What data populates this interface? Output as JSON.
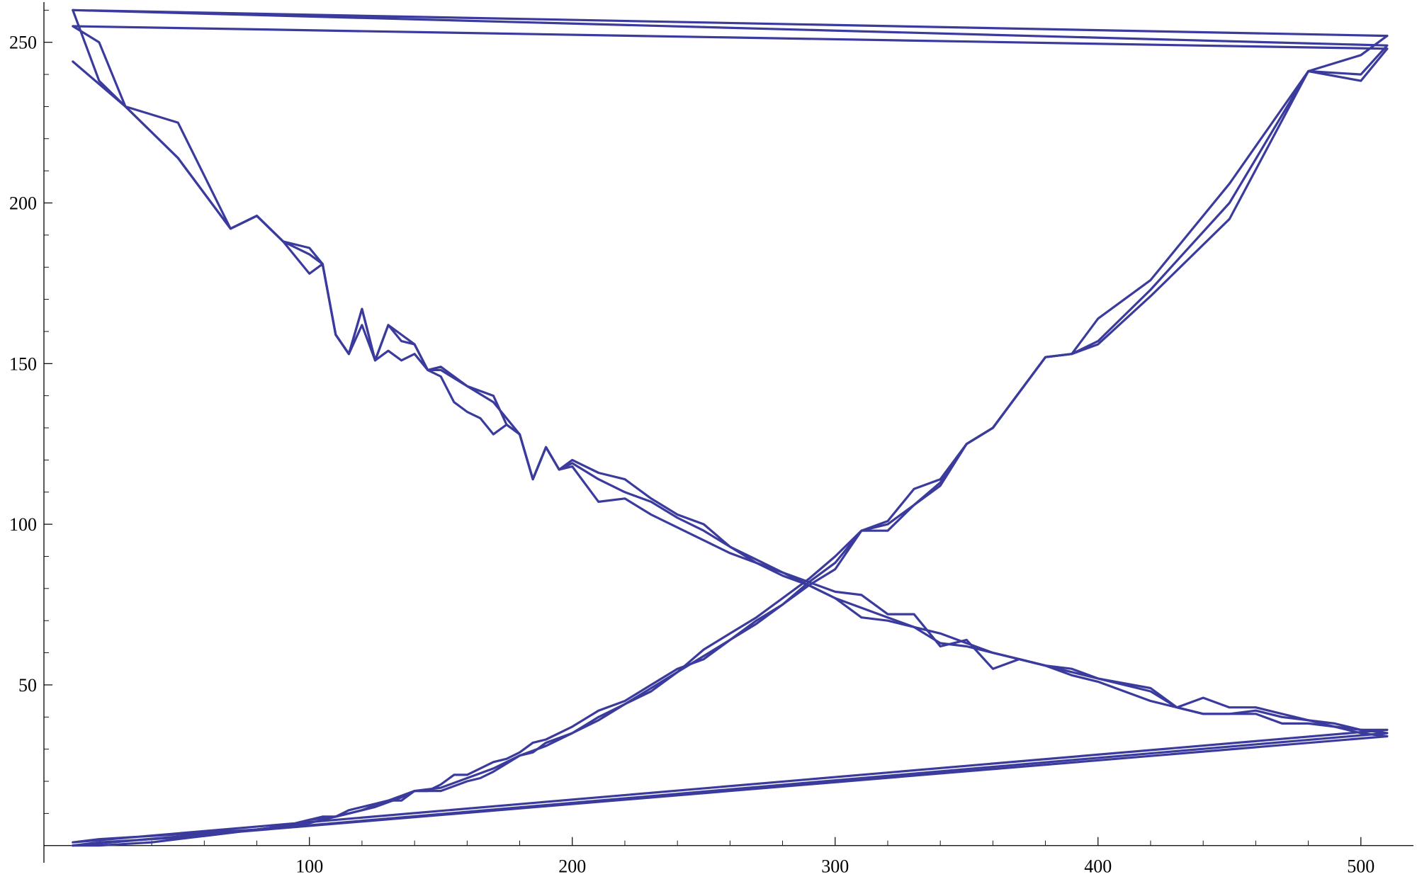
{
  "chart_data": {
    "type": "line",
    "title": "",
    "xlabel": "",
    "ylabel": "",
    "xlim": [
      -1,
      520
    ],
    "ylim": [
      -0.5,
      262.5
    ],
    "x_ticks": [
      100,
      200,
      300,
      400,
      500
    ],
    "y_ticks": [
      50,
      100,
      150,
      200,
      250
    ],
    "x_tick_labels": [
      "100",
      "200",
      "300",
      "400",
      "500"
    ],
    "y_tick_labels": [
      "50",
      "100",
      "150",
      "200",
      "250"
    ],
    "grid": false,
    "legend": "none",
    "line_color": "#3b3b9e",
    "series": [
      {
        "values": [
          [
            10,
            244
          ],
          [
            30,
            230
          ],
          [
            50,
            214
          ],
          [
            70,
            192
          ],
          [
            80,
            196
          ],
          [
            90,
            188
          ],
          [
            100,
            186
          ],
          [
            105,
            181
          ],
          [
            110,
            159
          ],
          [
            115,
            153
          ],
          [
            120,
            167
          ],
          [
            125,
            151
          ],
          [
            130,
            162
          ],
          [
            135,
            157
          ],
          [
            140,
            156
          ],
          [
            145,
            148
          ],
          [
            150,
            149
          ],
          [
            160,
            143
          ],
          [
            170,
            140
          ],
          [
            175,
            131
          ],
          [
            180,
            128
          ],
          [
            185,
            114
          ],
          [
            190,
            124
          ],
          [
            195,
            117
          ],
          [
            200,
            120
          ],
          [
            210,
            116
          ],
          [
            220,
            114
          ],
          [
            230,
            108
          ],
          [
            240,
            103
          ],
          [
            250,
            100
          ],
          [
            260,
            93
          ],
          [
            270,
            88
          ],
          [
            280,
            85
          ],
          [
            290,
            82
          ],
          [
            300,
            79
          ],
          [
            310,
            78
          ],
          [
            320,
            72
          ],
          [
            330,
            72
          ],
          [
            340,
            62
          ],
          [
            350,
            64
          ],
          [
            360,
            55
          ],
          [
            370,
            58
          ],
          [
            380,
            56
          ],
          [
            390,
            55
          ],
          [
            400,
            52
          ],
          [
            420,
            49
          ],
          [
            430,
            43
          ],
          [
            440,
            46
          ],
          [
            450,
            43
          ],
          [
            460,
            43
          ],
          [
            470,
            41
          ],
          [
            480,
            39
          ],
          [
            490,
            38
          ],
          [
            500,
            36
          ],
          [
            510,
            36
          ],
          [
            10,
            1
          ],
          [
            20,
            2
          ],
          [
            40,
            3
          ],
          [
            60,
            4
          ],
          [
            80,
            5
          ],
          [
            90,
            6
          ],
          [
            100,
            8
          ],
          [
            105,
            9
          ],
          [
            110,
            9
          ],
          [
            115,
            11
          ],
          [
            125,
            13
          ],
          [
            130,
            14
          ],
          [
            135,
            14
          ],
          [
            140,
            17
          ],
          [
            145,
            17
          ],
          [
            150,
            19
          ],
          [
            155,
            22
          ],
          [
            160,
            22
          ],
          [
            170,
            26
          ],
          [
            175,
            27
          ],
          [
            180,
            29
          ],
          [
            185,
            32
          ],
          [
            190,
            33
          ],
          [
            200,
            37
          ],
          [
            210,
            42
          ],
          [
            220,
            45
          ],
          [
            230,
            50
          ],
          [
            240,
            55
          ],
          [
            250,
            58
          ],
          [
            260,
            64
          ],
          [
            270,
            69
          ],
          [
            280,
            75
          ],
          [
            290,
            81
          ],
          [
            300,
            86
          ],
          [
            310,
            98
          ],
          [
            320,
            98
          ],
          [
            330,
            106
          ],
          [
            340,
            112
          ],
          [
            350,
            125
          ],
          [
            360,
            130
          ],
          [
            370,
            141
          ],
          [
            380,
            152
          ],
          [
            390,
            153
          ],
          [
            400,
            164
          ],
          [
            420,
            176
          ],
          [
            450,
            206
          ],
          [
            480,
            241
          ],
          [
            500,
            240
          ],
          [
            510,
            249
          ],
          [
            10,
            260
          ],
          [
            510,
            252
          ]
        ]
      },
      {
        "values": [
          [
            510,
            248
          ],
          [
            10,
            255
          ],
          [
            20,
            250
          ],
          [
            30,
            230
          ],
          [
            50,
            225
          ],
          [
            70,
            192
          ],
          [
            80,
            196
          ],
          [
            90,
            188
          ],
          [
            100,
            178
          ],
          [
            105,
            181
          ],
          [
            110,
            159
          ],
          [
            115,
            153
          ],
          [
            120,
            162
          ],
          [
            125,
            151
          ],
          [
            130,
            154
          ],
          [
            135,
            151
          ],
          [
            140,
            153
          ],
          [
            145,
            148
          ],
          [
            150,
            146
          ],
          [
            155,
            138
          ],
          [
            160,
            135
          ],
          [
            165,
            133
          ],
          [
            170,
            128
          ],
          [
            175,
            131
          ],
          [
            180,
            128
          ],
          [
            185,
            114
          ],
          [
            190,
            124
          ],
          [
            195,
            117
          ],
          [
            200,
            118
          ],
          [
            210,
            107
          ],
          [
            220,
            108
          ],
          [
            230,
            103
          ],
          [
            240,
            99
          ],
          [
            250,
            95
          ],
          [
            260,
            91
          ],
          [
            270,
            88
          ],
          [
            280,
            84
          ],
          [
            290,
            81
          ],
          [
            300,
            77
          ],
          [
            310,
            71
          ],
          [
            320,
            70
          ],
          [
            330,
            68
          ],
          [
            340,
            66
          ],
          [
            350,
            63
          ],
          [
            360,
            60
          ],
          [
            370,
            58
          ],
          [
            380,
            56
          ],
          [
            390,
            53
          ],
          [
            400,
            51
          ],
          [
            420,
            45
          ],
          [
            430,
            43
          ],
          [
            440,
            41
          ],
          [
            450,
            41
          ],
          [
            460,
            41
          ],
          [
            470,
            38
          ],
          [
            480,
            38
          ],
          [
            490,
            37
          ],
          [
            500,
            35
          ],
          [
            510,
            34
          ],
          [
            10,
            0
          ],
          [
            20,
            0
          ],
          [
            40,
            1
          ],
          [
            60,
            3
          ],
          [
            80,
            5
          ],
          [
            100,
            7
          ],
          [
            110,
            9
          ],
          [
            115,
            10
          ],
          [
            125,
            12
          ],
          [
            135,
            15
          ],
          [
            140,
            17
          ],
          [
            150,
            17
          ],
          [
            160,
            20
          ],
          [
            165,
            21
          ],
          [
            170,
            23
          ],
          [
            180,
            28
          ],
          [
            185,
            29
          ],
          [
            190,
            32
          ],
          [
            200,
            35
          ],
          [
            210,
            39
          ],
          [
            220,
            44
          ],
          [
            230,
            48
          ],
          [
            240,
            54
          ],
          [
            250,
            61
          ],
          [
            260,
            66
          ],
          [
            270,
            71
          ],
          [
            280,
            77
          ],
          [
            290,
            83
          ],
          [
            300,
            90
          ],
          [
            310,
            98
          ],
          [
            320,
            101
          ],
          [
            330,
            111
          ],
          [
            340,
            114
          ],
          [
            350,
            125
          ],
          [
            360,
            130
          ],
          [
            370,
            141
          ],
          [
            380,
            152
          ],
          [
            390,
            153
          ],
          [
            400,
            156
          ],
          [
            420,
            171
          ],
          [
            450,
            195
          ],
          [
            480,
            241
          ],
          [
            500,
            238
          ],
          [
            510,
            248
          ]
        ]
      },
      {
        "values": [
          [
            10,
            260
          ],
          [
            20,
            238
          ],
          [
            30,
            230
          ],
          [
            50,
            214
          ],
          [
            70,
            192
          ],
          [
            80,
            196
          ],
          [
            90,
            188
          ],
          [
            100,
            184
          ],
          [
            105,
            181
          ],
          [
            110,
            159
          ],
          [
            115,
            153
          ],
          [
            120,
            167
          ],
          [
            125,
            151
          ],
          [
            130,
            162
          ],
          [
            135,
            159
          ],
          [
            140,
            156
          ],
          [
            145,
            148
          ],
          [
            150,
            148
          ],
          [
            160,
            143
          ],
          [
            170,
            138
          ],
          [
            180,
            128
          ],
          [
            185,
            114
          ],
          [
            190,
            124
          ],
          [
            195,
            117
          ],
          [
            200,
            119
          ],
          [
            210,
            114
          ],
          [
            220,
            110
          ],
          [
            230,
            107
          ],
          [
            240,
            102
          ],
          [
            250,
            98
          ],
          [
            260,
            93
          ],
          [
            270,
            89
          ],
          [
            280,
            85
          ],
          [
            290,
            81
          ],
          [
            300,
            77
          ],
          [
            310,
            74
          ],
          [
            320,
            71
          ],
          [
            330,
            68
          ],
          [
            340,
            63
          ],
          [
            350,
            62
          ],
          [
            360,
            60
          ],
          [
            370,
            58
          ],
          [
            380,
            56
          ],
          [
            390,
            54
          ],
          [
            400,
            52
          ],
          [
            420,
            48
          ],
          [
            430,
            43
          ],
          [
            440,
            41
          ],
          [
            450,
            41
          ],
          [
            460,
            42
          ],
          [
            470,
            40
          ],
          [
            480,
            39
          ],
          [
            490,
            37
          ],
          [
            500,
            36
          ],
          [
            510,
            35
          ],
          [
            10,
            0
          ],
          [
            20,
            1
          ],
          [
            40,
            2
          ],
          [
            60,
            3
          ],
          [
            80,
            5
          ],
          [
            90,
            6
          ],
          [
            100,
            8
          ],
          [
            110,
            9
          ],
          [
            120,
            11
          ],
          [
            130,
            14
          ],
          [
            140,
            17
          ],
          [
            150,
            18
          ],
          [
            160,
            21
          ],
          [
            170,
            24
          ],
          [
            180,
            28
          ],
          [
            190,
            31
          ],
          [
            200,
            35
          ],
          [
            210,
            40
          ],
          [
            220,
            44
          ],
          [
            230,
            49
          ],
          [
            240,
            54
          ],
          [
            250,
            59
          ],
          [
            260,
            64
          ],
          [
            270,
            70
          ],
          [
            280,
            75
          ],
          [
            290,
            82
          ],
          [
            300,
            88
          ],
          [
            310,
            98
          ],
          [
            320,
            100
          ],
          [
            330,
            106
          ],
          [
            340,
            113
          ],
          [
            350,
            125
          ],
          [
            360,
            130
          ],
          [
            370,
            141
          ],
          [
            380,
            152
          ],
          [
            390,
            153
          ],
          [
            400,
            157
          ],
          [
            420,
            173
          ],
          [
            450,
            200
          ],
          [
            480,
            241
          ],
          [
            500,
            246
          ],
          [
            510,
            252
          ]
        ]
      }
    ]
  }
}
